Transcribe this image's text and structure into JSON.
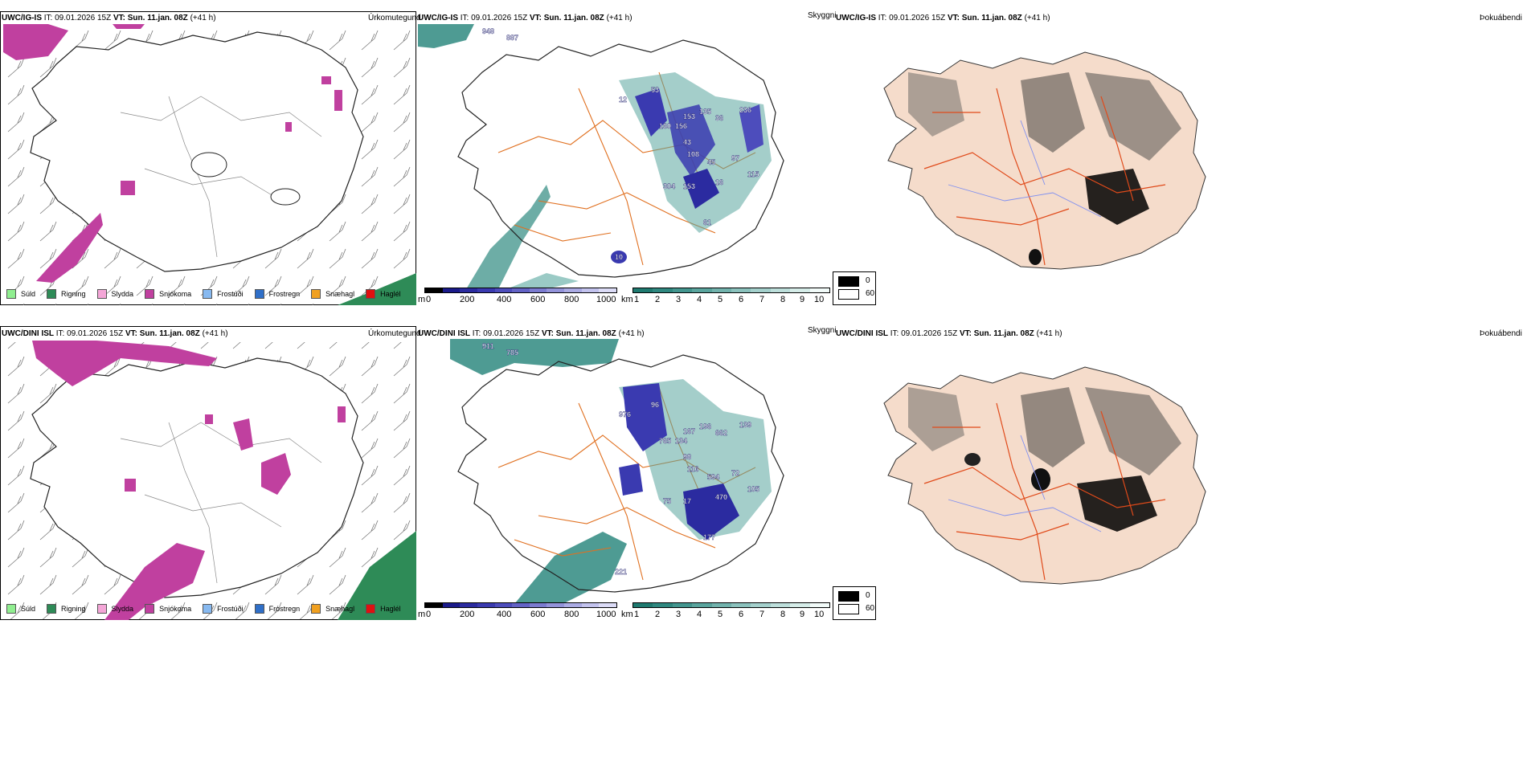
{
  "rows": [
    {
      "model": "UWC/IG-IS",
      "it_label": "IT:",
      "it_value": "09.01.2026 15Z",
      "vt_label": "VT:",
      "vt_value": "Sun. 11.jan. 08Z",
      "lead": "(+41 h)",
      "precip_title": "Úrkomutegund",
      "cloud_title": "Skyggni",
      "fog_title": "Þokuábendi",
      "cloud_numbers": [
        "948",
        "887",
        "12",
        "53",
        "160",
        "156",
        "153",
        "135",
        "36",
        "236",
        "43",
        "108",
        "45",
        "97",
        "304",
        "153",
        "16",
        "115",
        "61",
        "10"
      ]
    },
    {
      "model": "UWC/DINI ISL",
      "it_label": "IT:",
      "it_value": "09.01.2026 15Z",
      "vt_label": "VT:",
      "vt_value": "Sun. 11.jan. 08Z",
      "lead": "(+41 h)",
      "precip_title": "Úrkomutegund",
      "cloud_title": "Skyggni",
      "fog_title": "Þokuábendi",
      "cloud_numbers": [
        "911",
        "785",
        "976",
        "96",
        "765",
        "134",
        "167",
        "196",
        "662",
        "139",
        "98",
        "116",
        "594",
        "72",
        "75",
        "17",
        "470",
        "105",
        "177",
        "221"
      ]
    }
  ],
  "precip_legend": [
    {
      "label": "Súld",
      "color": "#90ee90"
    },
    {
      "label": "Rigning",
      "color": "#2e8b57"
    },
    {
      "label": "Slydda",
      "color": "#f4a6d7"
    },
    {
      "label": "Snjókoma",
      "color": "#c0409f"
    },
    {
      "label": "Frostúði",
      "color": "#87b9f0"
    },
    {
      "label": "Frostregn",
      "color": "#2f6fc8"
    },
    {
      "label": "Snæhagl",
      "color": "#f0a020"
    },
    {
      "label": "Haglél",
      "color": "#e01010"
    }
  ],
  "ceiling_scale": {
    "unit": "m",
    "ticks": [
      "0",
      "200",
      "400",
      "600",
      "800",
      "1000"
    ],
    "colors": [
      "#000000",
      "#1a1a8a",
      "#2b2ba0",
      "#3a3ab0",
      "#4d4dbc",
      "#6363c6",
      "#7b7bd0",
      "#9393da",
      "#ababe4",
      "#c3c3ee",
      "#dcdcf7"
    ]
  },
  "visibility_scale": {
    "unit": "km",
    "ticks": [
      "1",
      "2",
      "3",
      "4",
      "5",
      "6",
      "7",
      "8",
      "9",
      "10"
    ],
    "colors": [
      "#1f7a70",
      "#2f8880",
      "#43968f",
      "#5aa59e",
      "#72b3ad",
      "#8bc2bd",
      "#a4d0cc",
      "#bddfdb",
      "#d6ede9",
      "#f2fbf9"
    ]
  },
  "fog_scale": {
    "low": "0",
    "high": "60"
  },
  "colors": {
    "snow": "#c0409f",
    "rain": "#2e8b57",
    "teal": "#2f8a80",
    "ceiling": "#3030a8",
    "roads": "#e07020",
    "land": "#f5dccb"
  }
}
